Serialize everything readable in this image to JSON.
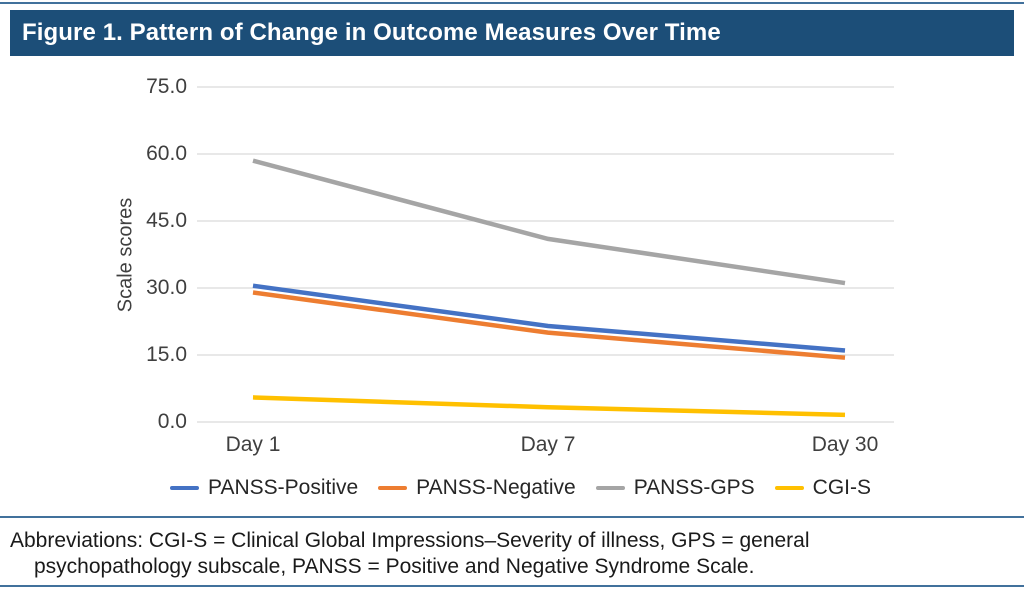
{
  "title": "Figure 1. Pattern of Change in Outcome Measures Over Time",
  "chart_data": {
    "type": "line",
    "title": "Figure 1. Pattern of Change in Outcome Measures Over Time",
    "categories": [
      "Day 1",
      "Day 7",
      "Day 30"
    ],
    "series": [
      {
        "name": "PANSS-Positive",
        "color": "#4472C4",
        "values": [
          30.5,
          21.5,
          16.0
        ]
      },
      {
        "name": "PANSS-Negative",
        "color": "#ED7D31",
        "values": [
          29.0,
          20.0,
          14.4
        ]
      },
      {
        "name": "PANSS-GPS",
        "color": "#A5A5A5",
        "values": [
          58.5,
          41.0,
          31.1
        ]
      },
      {
        "name": "CGI-S",
        "color": "#FFC000",
        "values": [
          5.5,
          3.3,
          1.6
        ]
      }
    ],
    "xlabel": "",
    "ylabel": "Scale scores",
    "ylim": [
      0,
      75
    ],
    "yticks": [
      {
        "value": 0,
        "label": "0.0"
      },
      {
        "value": 15,
        "label": "15.0"
      },
      {
        "value": 30,
        "label": "30.0"
      },
      {
        "value": 45,
        "label": "45.0"
      },
      {
        "value": 60,
        "label": "60.0"
      },
      {
        "value": 75,
        "label": "75.0"
      }
    ],
    "grid": "horizontal",
    "legend_position": "bottom"
  },
  "footnote": {
    "line1": "Abbreviations: CGI-S = Clinical Global Impressions–Severity of illness, GPS = general",
    "line2": "psychopathology subscale, PANSS = Positive and Negative Syndrome Scale."
  },
  "colors": {
    "header_bg": "#1C4E78",
    "rule": "#41719C",
    "grid_line": "#D9D9D9",
    "tick_text": "#3f3f3f"
  }
}
